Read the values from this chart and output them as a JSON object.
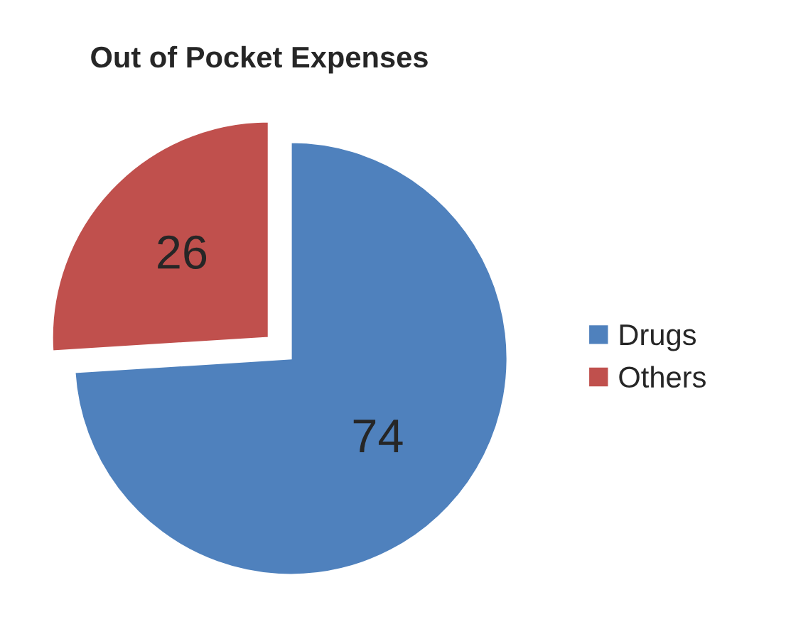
{
  "chart_data": {
    "type": "pie",
    "title": "Out of Pocket Expenses",
    "categories": [
      "Drugs",
      "Others"
    ],
    "values": [
      74,
      26
    ],
    "colors": [
      "#4f81bd",
      "#c0504d"
    ],
    "data_labels": true,
    "legend": "right"
  }
}
